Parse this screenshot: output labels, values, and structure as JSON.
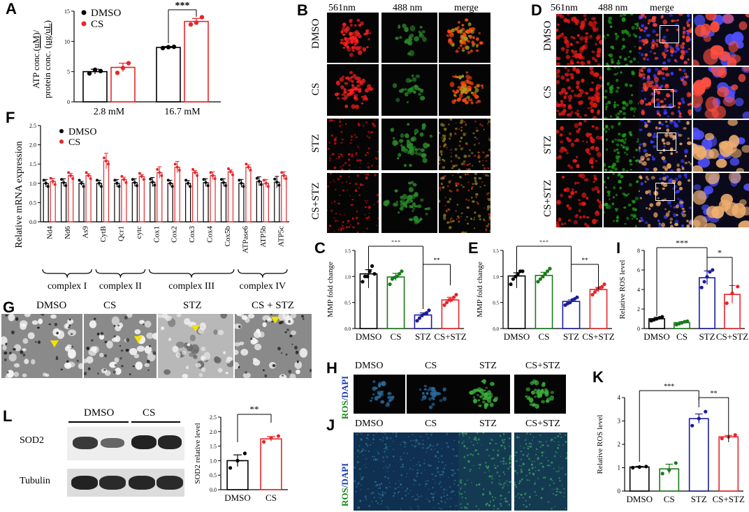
{
  "letters": {
    "A": "A",
    "B": "B",
    "C": "C",
    "D": "D",
    "E": "E",
    "F": "F",
    "G": "G",
    "H": "H",
    "I": "I",
    "J": "J",
    "K": "K",
    "L": "L"
  },
  "colors": {
    "dmso": "#000000",
    "cs_red": "#e8262b",
    "cs_green": "#1a7a1a",
    "stz": "#1c1c9c",
    "cs_stz": "#e8262b"
  },
  "panelB": {
    "cols": [
      "561nm",
      "488 nm",
      "merge"
    ],
    "rows": [
      "DMSO",
      "CS",
      "STZ",
      "CS+STZ"
    ]
  },
  "panelD": {
    "cols": [
      "561nm",
      "488 nm",
      "merge"
    ],
    "rows": [
      "DMSO",
      "CS",
      "STZ",
      "CS+STZ"
    ]
  },
  "panelG": {
    "labels": [
      "DMSO",
      "CS",
      "STZ",
      "CS + STZ"
    ]
  },
  "panelH": {
    "labels": [
      "DMSO",
      "CS",
      "STZ",
      "CS+STZ"
    ],
    "ylabel_a": "ROS",
    "ylabel_b": "/DAPI"
  },
  "panelJ": {
    "labels": [
      "DMSO",
      "CS",
      "STZ",
      "CS+STZ"
    ],
    "ylabel_a": "ROS",
    "ylabel_b": "/DAPI"
  },
  "panelL": {
    "groups": [
      "DMSO",
      "CS"
    ],
    "rows": [
      "SOD2",
      "Tubulin"
    ]
  },
  "chart_data": [
    {
      "id": "A",
      "type": "bar",
      "ylabel_a": "ATP conc.(",
      "ylabel_u1": "uM",
      "ylabel_b": ")/",
      "ylabel_c": "protein conc. (",
      "ylabel_u2": "µg/uL",
      "ylabel_d": ")",
      "categories": [
        "2.8 mM",
        "16.7 mM"
      ],
      "series": [
        {
          "name": "DMSO",
          "values": [
            5.0,
            9.0
          ],
          "err": [
            0.4,
            0.15
          ],
          "points": [
            [
              4.7,
              5.3,
              5.1
            ],
            [
              8.9,
              9.05,
              9.1
            ]
          ]
        },
        {
          "name": "CS",
          "values": [
            5.7,
            13.3
          ],
          "err": [
            0.7,
            0.5
          ],
          "points": [
            [
              4.8,
              5.6,
              6.4
            ],
            [
              12.8,
              13.1,
              14.0
            ]
          ]
        }
      ],
      "ylim": [
        0,
        15
      ],
      "yticks": [
        "0",
        "5",
        "10",
        "15"
      ],
      "sig": "***"
    },
    {
      "id": "F",
      "type": "bar",
      "ylabel": "Relative mRNA expression",
      "categories": [
        "Nd4",
        "Nd6",
        "As9",
        "CytB",
        "Qcr1",
        "cytc",
        "Cox1",
        "Cox2",
        "Cox3",
        "Cox4",
        "Cox5b",
        "ATPase6",
        "ATP5b",
        "ATP5c"
      ],
      "series": [
        {
          "name": "DMSO",
          "values": [
            1.0,
            1.02,
            1.0,
            1.0,
            1.0,
            1.02,
            1.03,
            1.0,
            1.0,
            1.02,
            1.02,
            1.0,
            1.05,
            1.03
          ],
          "err": [
            0.1,
            0.1,
            0.05,
            0.08,
            0.1,
            0.1,
            0.12,
            0.08,
            0.07,
            0.1,
            0.1,
            0.1,
            0.12,
            0.15
          ]
        },
        {
          "name": "CS",
          "values": [
            1.05,
            1.2,
            1.2,
            1.58,
            1.1,
            1.18,
            1.28,
            1.42,
            1.28,
            1.2,
            1.3,
            1.42,
            1.0,
            1.2
          ],
          "err": [
            0.08,
            0.06,
            0.05,
            0.2,
            0.06,
            0.05,
            0.15,
            0.15,
            0.05,
            0.1,
            0.05,
            0.06,
            0.1,
            0.1
          ]
        }
      ],
      "ylim": [
        0,
        2.5
      ],
      "yticks": [
        "0.0",
        "0.5",
        "1.0",
        "1.5",
        "2.0",
        "2.5"
      ],
      "complexes": [
        {
          "name": "complex I",
          "from": 0,
          "to": 2
        },
        {
          "name": "complex II",
          "from": 3,
          "to": 5
        },
        {
          "name": "complex III",
          "from": 6,
          "to": 10
        },
        {
          "name": "complex IV",
          "from": 11,
          "to": 13
        }
      ]
    },
    {
      "id": "C",
      "type": "bar",
      "ylabel": "MMP fold change",
      "categories": [
        "DMSO",
        "CS",
        "STZ",
        "CS+STZ"
      ],
      "values": [
        1.05,
        0.99,
        0.26,
        0.55
      ],
      "err": [
        0.08,
        0.07,
        0.04,
        0.05
      ],
      "points": [
        [
          0.9,
          1.0,
          1.0,
          1.1,
          1.2,
          1.05
        ],
        [
          0.85,
          0.95,
          0.98,
          1.0,
          1.05,
          1.1
        ],
        [
          0.15,
          0.2,
          0.25,
          0.28,
          0.3,
          0.35
        ],
        [
          0.45,
          0.5,
          0.55,
          0.55,
          0.6,
          0.65
        ]
      ],
      "ylim": [
        0,
        1.5
      ],
      "yticks": [
        "0.0",
        "0.5",
        "1.0",
        "1.5"
      ],
      "sigs": [
        {
          "from": 0,
          "to": 2,
          "text": "***"
        },
        {
          "from": 2,
          "to": 3,
          "text": "**"
        }
      ]
    },
    {
      "id": "E",
      "type": "bar",
      "ylabel": "MMP fold change",
      "categories": [
        "DMSO",
        "CS",
        "STZ",
        "CS+STZ"
      ],
      "values": [
        1.01,
        1.02,
        0.52,
        0.75
      ],
      "err": [
        0.06,
        0.06,
        0.03,
        0.04
      ],
      "points": [
        [
          0.85,
          0.95,
          1.0,
          1.05,
          1.1,
          1.1
        ],
        [
          0.9,
          0.95,
          1.0,
          1.05,
          1.1,
          1.15
        ],
        [
          0.45,
          0.48,
          0.5,
          0.55,
          0.57,
          0.6
        ],
        [
          0.65,
          0.7,
          0.75,
          0.78,
          0.8,
          0.85
        ]
      ],
      "ylim": [
        0,
        1.5
      ],
      "yticks": [
        "0.0",
        "0.5",
        "1.0",
        "1.5"
      ],
      "sigs": [
        {
          "from": 0,
          "to": 2,
          "text": "***"
        },
        {
          "from": 2,
          "to": 3,
          "text": "**"
        }
      ]
    },
    {
      "id": "I",
      "type": "bar",
      "ylabel": "Relative ROS level",
      "categories": [
        "DMSO",
        "CS",
        "STZ",
        "CS+STZ"
      ],
      "values": [
        1.0,
        0.6,
        5.2,
        3.5
      ],
      "err": [
        0.15,
        0.1,
        0.7,
        0.9
      ],
      "points": [
        [
          0.8,
          0.9,
          1.0,
          1.1,
          1.2
        ],
        [
          0.4,
          0.5,
          0.6,
          0.7,
          0.75
        ],
        [
          4.2,
          4.8,
          5.3,
          5.8,
          6.0
        ],
        [
          2.6,
          3.6,
          4.3
        ]
      ],
      "ylim": [
        0,
        8
      ],
      "yticks": [
        "0",
        "2",
        "4",
        "6",
        "8"
      ],
      "sigs": [
        {
          "from": 0,
          "to": 2,
          "text": "***"
        },
        {
          "from": 2,
          "to": 3,
          "text": "*"
        }
      ]
    },
    {
      "id": "K",
      "type": "bar",
      "ylabel": "Relative ROS level",
      "categories": [
        "DMSO",
        "CS",
        "STZ",
        "CS+STZ"
      ],
      "values": [
        1.03,
        0.95,
        3.1,
        2.32
      ],
      "err": [
        0.03,
        0.2,
        0.2,
        0.06
      ],
      "points": [
        [
          1.0,
          1.03,
          1.05
        ],
        [
          0.75,
          0.9,
          1.2
        ],
        [
          2.8,
          3.1,
          3.4
        ],
        [
          2.25,
          2.32,
          2.4
        ]
      ],
      "ylim": [
        0,
        4
      ],
      "yticks": [
        "0",
        "1",
        "2",
        "3",
        "4"
      ],
      "sigs": [
        {
          "from": 0,
          "to": 2,
          "text": "***"
        },
        {
          "from": 2,
          "to": 3,
          "text": "**"
        }
      ]
    },
    {
      "id": "L",
      "type": "bar",
      "ylabel": "SOD2 relative level",
      "categories": [
        "DMSO",
        "CS"
      ],
      "values": [
        1.0,
        1.75
      ],
      "err": [
        0.2,
        0.08
      ],
      "points": [
        [
          0.75,
          1.0,
          1.25
        ],
        [
          1.65,
          1.78,
          1.85
        ]
      ],
      "ylim": [
        0,
        2.5
      ],
      "yticks": [
        "0.0",
        "0.5",
        "1.0",
        "1.5",
        "2.0",
        "2.5"
      ],
      "sigs": [
        {
          "from": 0,
          "to": 1,
          "text": "**"
        }
      ]
    }
  ]
}
